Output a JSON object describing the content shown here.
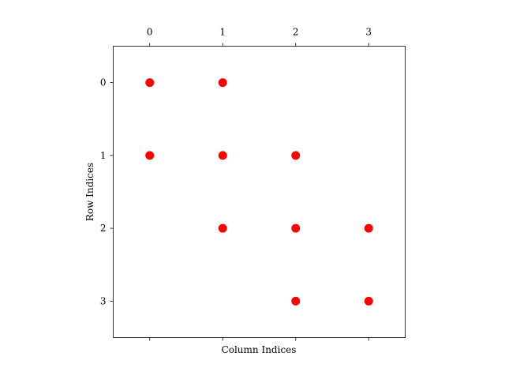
{
  "chart_data": {
    "type": "scatter",
    "title": "",
    "xlabel": "Column Indices",
    "ylabel": "Row Indices",
    "xlim": [
      -0.5,
      3.5
    ],
    "ylim": [
      3.5,
      -0.5
    ],
    "y_inverted": true,
    "x_ticks": [
      0,
      1,
      2,
      3
    ],
    "y_ticks": [
      0,
      1,
      2,
      3
    ],
    "x_tick_labels_position": "top",
    "grid": false,
    "legend": "none",
    "marker_color": "#ff0000",
    "points": [
      {
        "col": 0,
        "row": 0
      },
      {
        "col": 1,
        "row": 0
      },
      {
        "col": 0,
        "row": 1
      },
      {
        "col": 1,
        "row": 1
      },
      {
        "col": 2,
        "row": 1
      },
      {
        "col": 1,
        "row": 2
      },
      {
        "col": 2,
        "row": 2
      },
      {
        "col": 3,
        "row": 2
      },
      {
        "col": 2,
        "row": 3
      },
      {
        "col": 3,
        "row": 3
      }
    ]
  }
}
